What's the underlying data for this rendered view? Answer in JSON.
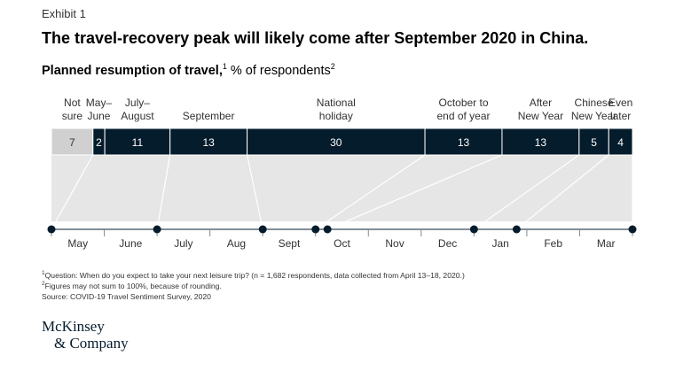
{
  "exhibit": "Exhibit 1",
  "title": "The travel-recovery peak will likely come after September 2020 in China.",
  "subtitle": {
    "bold": "Planned resumption of travel,",
    "sup1": "1",
    "rest": " % of respondents",
    "sup2": "2"
  },
  "chart_data": {
    "type": "bar",
    "orientation": "horizontal-stacked",
    "series": [
      {
        "name": "",
        "categories": [
          "Not sure",
          "May–June",
          "July–August",
          "September",
          "National holiday",
          "October to end of year",
          "After New Year",
          "Chinese New Year",
          "Even later"
        ],
        "values": [
          7,
          2,
          11,
          13,
          30,
          13,
          13,
          5,
          4
        ]
      }
    ],
    "category_lines": [
      [
        "Not",
        "sure"
      ],
      [
        "May–",
        "June"
      ],
      [
        "July–",
        "August"
      ],
      [
        "September"
      ],
      [
        "National",
        "holiday"
      ],
      [
        "October to",
        "end of year"
      ],
      [
        "After",
        "New Year"
      ],
      [
        "Chinese",
        "New Year"
      ],
      [
        "Even",
        "later"
      ]
    ],
    "timeline_months": [
      "May",
      "June",
      "July",
      "Aug",
      "Sept",
      "Oct",
      "Nov",
      "Dec",
      "Jan",
      "Feb",
      "Mar"
    ],
    "timeline_points": [
      "start",
      "Jun 30",
      "Aug 31",
      "Sep 30",
      "Oct 7",
      "Dec 31",
      "Jan 25",
      "Mar 31"
    ],
    "colors": {
      "not_sure": "#d0d0d0",
      "bar": "#051c2c",
      "text_light": "#ffffff",
      "text_dark": "#333333",
      "band": "#e6e6e6"
    }
  },
  "footnotes": [
    {
      "sup": "1",
      "text": "Question: When do you expect to take your next leisure trip? (n = 1,682 respondents, data collected from April 13–18, 2020.)"
    },
    {
      "sup": "2",
      "text": "Figures may not sum to 100%, because of rounding."
    },
    {
      "sup": "",
      "text": "Source: COVID-19 Travel Sentiment Survey, 2020"
    }
  ],
  "logo": {
    "line1": "McKinsey",
    "line2": "& Company"
  }
}
